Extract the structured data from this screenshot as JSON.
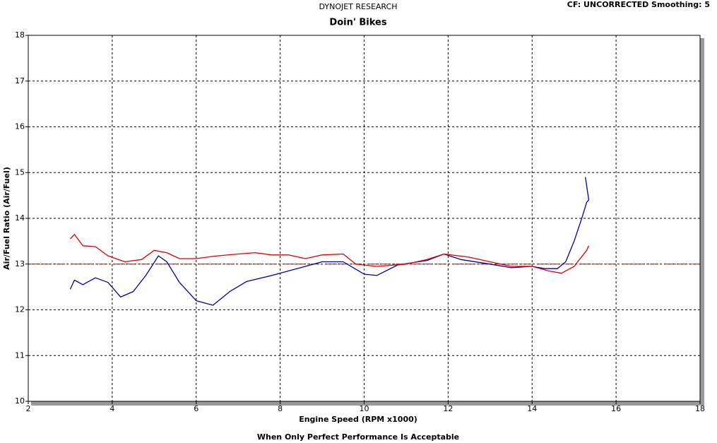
{
  "chart_data": {
    "type": "line",
    "header": "DYNOJET RESEARCH",
    "title": "Doin' Bikes",
    "info": "CF: UNCORRECTED  Smoothing: 5",
    "xlabel": "Engine Speed (RPM x1000)",
    "ylabel": "Air/Fuel Ratio (Air/Fuel)",
    "footer": "When Only Perfect Performance Is Acceptable",
    "xlim": [
      2,
      18
    ],
    "xticks": [
      2,
      4,
      6,
      8,
      10,
      12,
      14,
      16,
      18
    ],
    "ylim": [
      10,
      18
    ],
    "yticks": [
      10,
      11,
      12,
      13,
      14,
      15,
      16,
      17,
      18
    ],
    "grid": true,
    "reference_line": {
      "value": 13,
      "color": "#e00000"
    },
    "series": [
      {
        "color": "#0000a0",
        "x": [
          3.0,
          3.1,
          3.3,
          3.6,
          3.9,
          4.2,
          4.5,
          4.8,
          5.1,
          5.3,
          5.6,
          6.0,
          6.4,
          6.8,
          7.2,
          7.8,
          8.4,
          9.0,
          9.5,
          10.0,
          10.3,
          10.8,
          11.5,
          11.9,
          12.3,
          13.0,
          13.5,
          14.0,
          14.3,
          14.6,
          14.8,
          15.0,
          15.2,
          15.3,
          15.35,
          15.27
        ],
        "values": [
          12.45,
          12.65,
          12.55,
          12.7,
          12.6,
          12.28,
          12.4,
          12.75,
          13.18,
          13.05,
          12.6,
          12.2,
          12.1,
          12.4,
          12.62,
          12.75,
          12.9,
          13.05,
          13.05,
          12.78,
          12.75,
          12.98,
          13.08,
          13.22,
          13.1,
          13.0,
          12.92,
          12.95,
          12.9,
          12.9,
          13.05,
          13.5,
          14.05,
          14.35,
          14.4,
          14.9
        ]
      },
      {
        "color": "#e00000",
        "x": [
          3.0,
          3.1,
          3.3,
          3.6,
          3.9,
          4.3,
          4.7,
          5.0,
          5.3,
          5.6,
          6.0,
          6.5,
          7.0,
          7.4,
          7.8,
          8.2,
          8.6,
          9.0,
          9.5,
          9.8,
          10.3,
          11.0,
          11.5,
          11.9,
          12.5,
          13.0,
          13.5,
          14.0,
          14.4,
          14.7,
          15.0,
          15.3,
          15.35
        ],
        "values": [
          13.55,
          13.65,
          13.4,
          13.38,
          13.18,
          13.05,
          13.1,
          13.3,
          13.25,
          13.12,
          13.12,
          13.18,
          13.22,
          13.25,
          13.2,
          13.2,
          13.12,
          13.2,
          13.22,
          13.0,
          12.95,
          13.0,
          13.1,
          13.22,
          13.15,
          13.05,
          12.95,
          12.95,
          12.85,
          12.8,
          12.95,
          13.3,
          13.4
        ]
      }
    ]
  }
}
